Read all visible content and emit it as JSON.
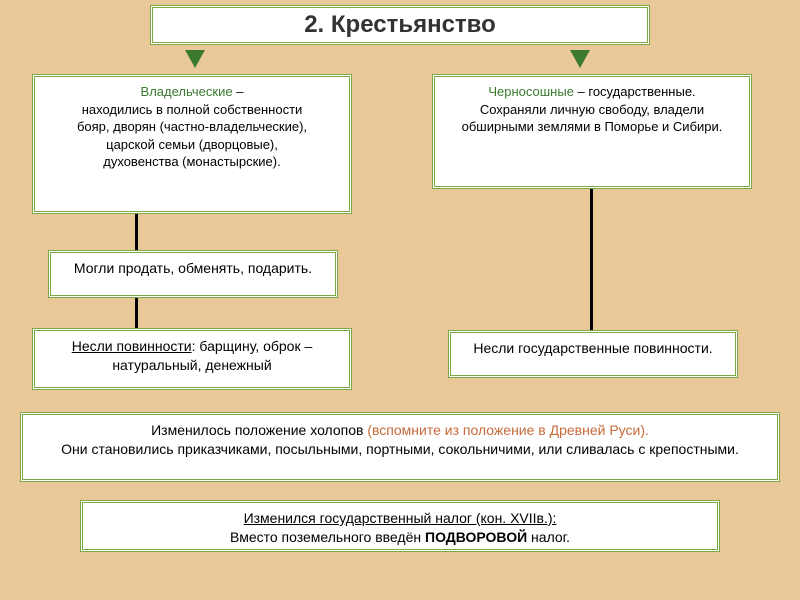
{
  "title": "2. Крестьянство",
  "left": {
    "heading": "Владельческие",
    "l1": " –",
    "l2": "находились в полной собственности",
    "l3": "бояр, дворян (частно-владельческие),",
    "l4": "царской семьи (дворцовые),",
    "l5": "духовенства (монастырские)."
  },
  "right": {
    "heading": "Черносошные",
    "l1": " – государственные.",
    "l2": "Сохраняли личную свободу, владели обширными землями в Поморье и Сибири."
  },
  "midLeft": "Могли продать, обменять, подарить.",
  "botLeft": {
    "u": "Несли повинности",
    "rest": ": барщину, оброк – натуральный, денежный"
  },
  "botRight": "Несли государственные повинности.",
  "kholop": {
    "l1a": "Изменилось положение холопов ",
    "l1b": "(вспомните из положение в Древней Руси).",
    "l2": "Они становились приказчиками, посыльными, портными, сокольничими, или сливалась с крепостными."
  },
  "tax": {
    "l1": "Изменился государственный налог (кон. XVIIв.):",
    "l2a": "Вместо поземельного введён ",
    "l2b": "ПОДВОРОВОЙ",
    "l2c": " налог."
  },
  "colors": {
    "bg": "#e8c896",
    "border": "#7ca843",
    "green": "#3a7a2f",
    "orange": "#c76a3a"
  }
}
